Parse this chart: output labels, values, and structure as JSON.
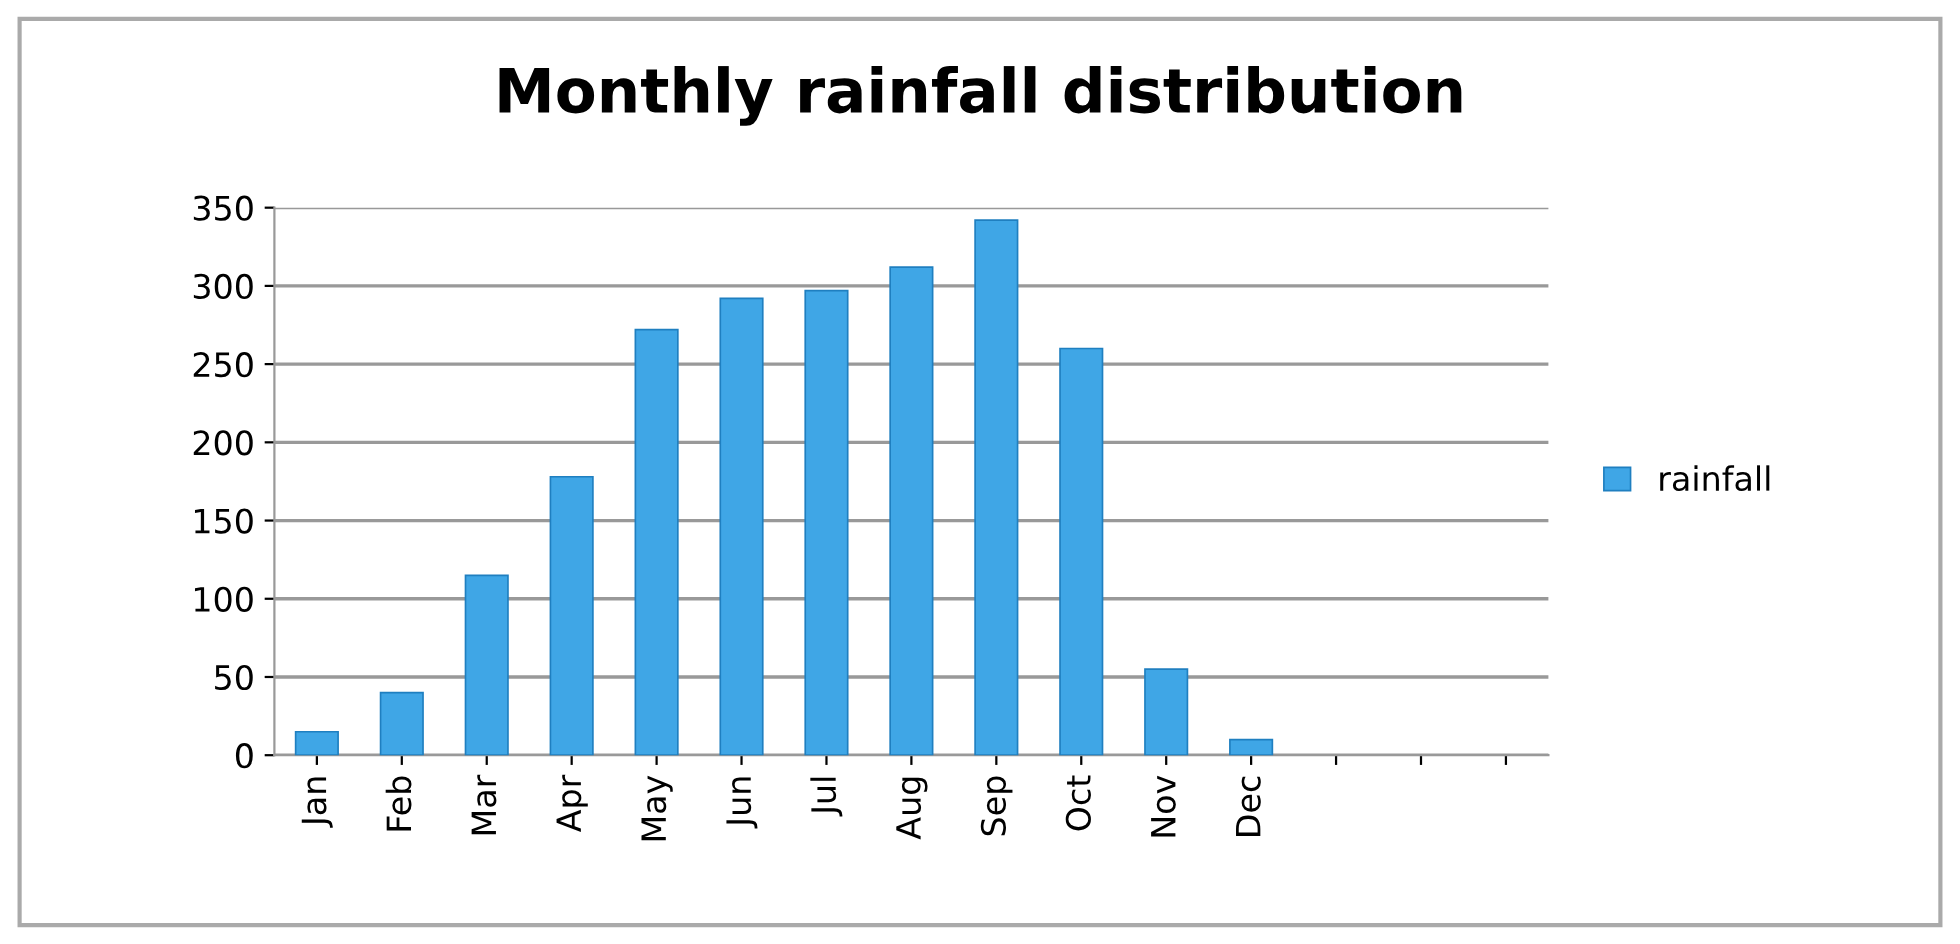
{
  "chart_data": {
    "type": "bar",
    "title": "Monthly rainfall distribution",
    "categories": [
      "Jan",
      "Feb",
      "Mar",
      "Apr",
      "May",
      "Jun",
      "Jul",
      "Aug",
      "Sep",
      "Oct",
      "Nov",
      "Dec",
      null,
      null,
      null
    ],
    "series": [
      {
        "name": "rainfall",
        "color": "#3fa6e6",
        "values": [
          15,
          40,
          115,
          178,
          272,
          292,
          297,
          312,
          342,
          260,
          55,
          10,
          null,
          null,
          null
        ]
      }
    ],
    "ylim": [
      0,
      350
    ],
    "yticks": [
      0,
      50,
      100,
      150,
      200,
      250,
      300,
      350
    ],
    "grid": "y",
    "legend": "right"
  }
}
